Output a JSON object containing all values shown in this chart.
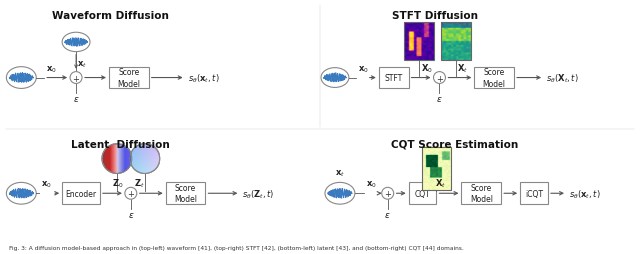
{
  "bg_color": "#ffffff",
  "top_left_title": "Waveform Diffusion",
  "top_right_title": "STFT Diffusion",
  "bottom_left_title": "Latent  Diffusion",
  "bottom_right_title": "CQT Score Estimation",
  "caption": "Fig. 3: A diffusion model-based approach in (top-left) waveform [41], (top-right) STFT [42], (bottom-left) latent [43], and (bottom-right) CQT [44] domains.",
  "waveform_color": "#3a7abf",
  "box_edge_color": "#888888",
  "arrow_color": "#555555",
  "text_color": "#222222"
}
